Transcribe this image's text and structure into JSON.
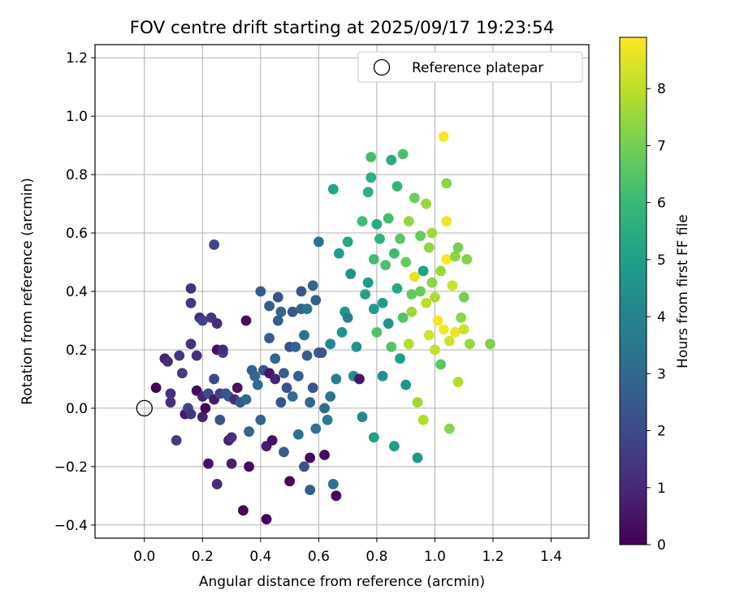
{
  "chart_data": {
    "type": "scatter",
    "title": "FOV centre drift starting at 2025/09/17 19:23:54",
    "xlabel": "Angular distance from reference (arcmin)",
    "ylabel": "Rotation from reference (arcmin)",
    "xlim": [
      -0.17,
      1.53
    ],
    "ylim": [
      -0.445,
      1.245
    ],
    "x_ticks": [
      0.0,
      0.2,
      0.4,
      0.6,
      0.8,
      1.0,
      1.2,
      1.4
    ],
    "x_tick_labels": [
      "0.0",
      "0.2",
      "0.4",
      "0.6",
      "0.8",
      "1.0",
      "1.2",
      "1.4"
    ],
    "y_ticks": [
      -0.4,
      -0.2,
      0.0,
      0.2,
      0.4,
      0.6,
      0.8,
      1.0,
      1.2
    ],
    "y_tick_labels": [
      "−0.4",
      "−0.2",
      "0.0",
      "0.2",
      "0.4",
      "0.6",
      "0.8",
      "1.0",
      "1.2"
    ],
    "grid": true,
    "legend": {
      "position": "upper-right",
      "entries": [
        "Reference platepar"
      ]
    },
    "reference_point": {
      "label": "Reference platepar",
      "x": 0.0,
      "y": 0.0
    },
    "colorbar": {
      "label": "Hours from first FF file",
      "colormap": "viridis",
      "range": [
        0,
        8.9
      ],
      "ticks": [
        0,
        1,
        2,
        3,
        4,
        5,
        6,
        7,
        8
      ],
      "tick_labels": [
        "0",
        "1",
        "2",
        "3",
        "4",
        "5",
        "6",
        "7",
        "8"
      ]
    },
    "colormap_stops": [
      "#440154",
      "#482878",
      "#3e4989",
      "#31688e",
      "#26828e",
      "#1f9e89",
      "#35b779",
      "#6ece58",
      "#b5de2b",
      "#fde725"
    ],
    "series": [
      {
        "points": [
          [
            0.04,
            0.07,
            0.0
          ],
          [
            0.07,
            0.17,
            0.8
          ],
          [
            0.08,
            0.16,
            1.1
          ],
          [
            0.09,
            0.05,
            1.3
          ],
          [
            0.09,
            0.02,
            1.2
          ],
          [
            0.11,
            -0.11,
            1.5
          ],
          [
            0.12,
            0.18,
            1.4
          ],
          [
            0.13,
            0.12,
            1.6
          ],
          [
            0.14,
            -0.02,
            0.6
          ],
          [
            0.15,
            0.0,
            1.8
          ],
          [
            0.16,
            0.22,
            1.2
          ],
          [
            0.16,
            -0.02,
            1.4
          ],
          [
            0.16,
            0.36,
            1.5
          ],
          [
            0.16,
            0.41,
            1.3
          ],
          [
            0.18,
            0.18,
            1.2
          ],
          [
            0.18,
            0.06,
            0.3
          ],
          [
            0.19,
            0.31,
            1.2
          ],
          [
            0.2,
            -0.03,
            0.8
          ],
          [
            0.2,
            0.04,
            0.9
          ],
          [
            0.2,
            0.3,
            1.8
          ],
          [
            0.21,
            0.0,
            0.2
          ],
          [
            0.22,
            -0.19,
            0.4
          ],
          [
            0.22,
            0.05,
            2.1
          ],
          [
            0.23,
            0.31,
            1.4
          ],
          [
            0.24,
            0.1,
            2.0
          ],
          [
            0.24,
            0.56,
            1.9
          ],
          [
            0.24,
            0.03,
            0.6
          ],
          [
            0.25,
            0.2,
            0.4
          ],
          [
            0.25,
            -0.26,
            1.1
          ],
          [
            0.25,
            0.29,
            1.1
          ],
          [
            0.26,
            0.05,
            1.7
          ],
          [
            0.26,
            -0.04,
            2.4
          ],
          [
            0.27,
            0.19,
            1.7
          ],
          [
            0.27,
            0.2,
            1.1
          ],
          [
            0.28,
            0.05,
            2.2
          ],
          [
            0.29,
            -0.11,
            0.7
          ],
          [
            0.29,
            0.04,
            2.5
          ],
          [
            0.3,
            -0.1,
            1.3
          ],
          [
            0.3,
            -0.19,
            0.8
          ],
          [
            0.31,
            0.03,
            1.1
          ],
          [
            0.32,
            0.07,
            0.4
          ],
          [
            0.33,
            0.02,
            2.5
          ],
          [
            0.34,
            -0.35,
            0.1
          ],
          [
            0.35,
            0.03,
            2.9
          ],
          [
            0.35,
            0.3,
            0.3
          ],
          [
            0.36,
            -0.2,
            0.2
          ],
          [
            0.36,
            -0.08,
            2.9
          ],
          [
            0.37,
            0.13,
            2.7
          ],
          [
            0.38,
            0.11,
            2.9
          ],
          [
            0.39,
            0.08,
            3.1
          ],
          [
            0.4,
            0.4,
            2.5
          ],
          [
            0.4,
            -0.04,
            2.8
          ],
          [
            0.41,
            0.13,
            2.3
          ],
          [
            0.42,
            -0.13,
            0.7
          ],
          [
            0.42,
            -0.38,
            0.1
          ],
          [
            0.43,
            0.24,
            2.7
          ],
          [
            0.43,
            0.12,
            0.5
          ],
          [
            0.43,
            0.35,
            2.6
          ],
          [
            0.44,
            -0.11,
            0.4
          ],
          [
            0.45,
            0.17,
            3.0
          ],
          [
            0.45,
            0.1,
            0.9
          ],
          [
            0.46,
            0.38,
            2.4
          ],
          [
            0.46,
            0.3,
            2.7
          ],
          [
            0.47,
            0.33,
            2.9
          ],
          [
            0.47,
            0.02,
            2.4
          ],
          [
            0.48,
            0.12,
            2.8
          ],
          [
            0.48,
            -0.15,
            2.6
          ],
          [
            0.49,
            0.07,
            2.3
          ],
          [
            0.5,
            0.21,
            2.2
          ],
          [
            0.5,
            -0.25,
            0.2
          ],
          [
            0.51,
            0.04,
            3.2
          ],
          [
            0.51,
            0.33,
            2.4
          ],
          [
            0.52,
            0.21,
            2.8
          ],
          [
            0.53,
            -0.09,
            3.4
          ],
          [
            0.53,
            0.11,
            2.7
          ],
          [
            0.54,
            0.34,
            2.8
          ],
          [
            0.54,
            0.4,
            2.3
          ],
          [
            0.55,
            -0.2,
            2.2
          ],
          [
            0.55,
            0.25,
            3.3
          ],
          [
            0.56,
            0.18,
            2.6
          ],
          [
            0.56,
            0.34,
            3.3
          ],
          [
            0.57,
            -0.28,
            2.6
          ],
          [
            0.57,
            0.02,
            2.9
          ],
          [
            0.57,
            -0.17,
            0.3
          ],
          [
            0.58,
            0.42,
            2.9
          ],
          [
            0.58,
            0.07,
            2.3
          ],
          [
            0.59,
            -0.07,
            3.4
          ],
          [
            0.59,
            0.37,
            2.7
          ],
          [
            0.6,
            0.19,
            2.7
          ],
          [
            0.6,
            0.57,
            3.3
          ],
          [
            0.61,
            0.19,
            2.4
          ],
          [
            0.62,
            -0.16,
            0.3
          ],
          [
            0.62,
            0.0,
            3.1
          ],
          [
            0.63,
            -0.04,
            3.6
          ],
          [
            0.64,
            0.04,
            3.5
          ],
          [
            0.64,
            0.22,
            4.1
          ],
          [
            0.65,
            -0.26,
            3.3
          ],
          [
            0.65,
            0.75,
            5.2
          ],
          [
            0.66,
            -0.3,
            0.2
          ],
          [
            0.66,
            0.1,
            3.8
          ],
          [
            0.67,
            0.53,
            4.9
          ],
          [
            0.68,
            0.26,
            4.6
          ],
          [
            0.69,
            0.33,
            4.7
          ],
          [
            0.7,
            0.57,
            5.3
          ],
          [
            0.7,
            0.31,
            3.8
          ],
          [
            0.71,
            0.46,
            4.4
          ],
          [
            0.72,
            0.11,
            4.3
          ],
          [
            0.73,
            0.21,
            4.5
          ],
          [
            0.74,
            0.1,
            0.5
          ],
          [
            0.75,
            -0.03,
            4.2
          ],
          [
            0.75,
            0.64,
            6.1
          ],
          [
            0.76,
            0.39,
            5.2
          ],
          [
            0.77,
            0.43,
            4.8
          ],
          [
            0.77,
            0.74,
            5.6
          ],
          [
            0.78,
            0.86,
            6.2
          ],
          [
            0.78,
            0.79,
            5.6
          ],
          [
            0.79,
            0.34,
            4.9
          ],
          [
            0.79,
            0.51,
            6.2
          ],
          [
            0.79,
            -0.1,
            5.1
          ],
          [
            0.8,
            0.63,
            5.4
          ],
          [
            0.8,
            0.26,
            6.4
          ],
          [
            0.81,
            0.58,
            5.7
          ],
          [
            0.82,
            0.11,
            4.4
          ],
          [
            0.82,
            0.36,
            4.9
          ],
          [
            0.83,
            0.49,
            6.3
          ],
          [
            0.84,
            0.29,
            4.6
          ],
          [
            0.84,
            0.65,
            6.2
          ],
          [
            0.85,
            0.21,
            6.5
          ],
          [
            0.85,
            0.85,
            5.4
          ],
          [
            0.86,
            0.53,
            6.1
          ],
          [
            0.86,
            -0.13,
            5.0
          ],
          [
            0.87,
            0.41,
            5.3
          ],
          [
            0.87,
            0.76,
            5.9
          ],
          [
            0.88,
            0.17,
            4.9
          ],
          [
            0.88,
            0.58,
            6.6
          ],
          [
            0.89,
            0.87,
            6.3
          ],
          [
            0.89,
            0.31,
            6.5
          ],
          [
            0.9,
            0.5,
            6.8
          ],
          [
            0.9,
            0.08,
            4.6
          ],
          [
            0.91,
            0.64,
            7.4
          ],
          [
            0.91,
            0.22,
            7.9
          ],
          [
            0.92,
            0.39,
            6.7
          ],
          [
            0.92,
            0.33,
            7.6
          ],
          [
            0.93,
            0.72,
            6.9
          ],
          [
            0.93,
            0.45,
            8.6
          ],
          [
            0.94,
            -0.17,
            4.7
          ],
          [
            0.94,
            0.02,
            7.6
          ],
          [
            0.95,
            0.59,
            6.8
          ],
          [
            0.95,
            0.4,
            6.8
          ],
          [
            0.96,
            0.47,
            5.1
          ],
          [
            0.96,
            -0.04,
            7.9
          ],
          [
            0.97,
            0.7,
            7.5
          ],
          [
            0.97,
            0.36,
            8.0
          ],
          [
            0.98,
            0.55,
            7.4
          ],
          [
            0.98,
            0.25,
            8.3
          ],
          [
            0.99,
            0.43,
            7.3
          ],
          [
            0.99,
            0.6,
            7.6
          ],
          [
            1.0,
            0.2,
            8.1
          ],
          [
            1.0,
            0.38,
            7.8
          ],
          [
            1.01,
            0.3,
            8.8
          ],
          [
            1.02,
            0.47,
            7.5
          ],
          [
            1.02,
            0.15,
            6.6
          ],
          [
            1.03,
            0.93,
            8.9
          ],
          [
            1.03,
            0.27,
            8.8
          ],
          [
            1.04,
            0.64,
            8.7
          ],
          [
            1.04,
            0.51,
            8.8
          ],
          [
            1.04,
            0.77,
            7.3
          ],
          [
            1.05,
            -0.07,
            7.3
          ],
          [
            1.05,
            0.23,
            8.3
          ],
          [
            1.06,
            0.42,
            8.2
          ],
          [
            1.07,
            0.26,
            8.7
          ],
          [
            1.07,
            0.52,
            7.3
          ],
          [
            1.08,
            0.55,
            7.0
          ],
          [
            1.08,
            0.09,
            7.9
          ],
          [
            1.09,
            0.31,
            7.4
          ],
          [
            1.1,
            0.38,
            7.0
          ],
          [
            1.1,
            0.27,
            8.2
          ],
          [
            1.11,
            0.51,
            7.2
          ],
          [
            1.12,
            0.22,
            7.5
          ],
          [
            1.19,
            0.22,
            7.2
          ]
        ]
      }
    ]
  }
}
